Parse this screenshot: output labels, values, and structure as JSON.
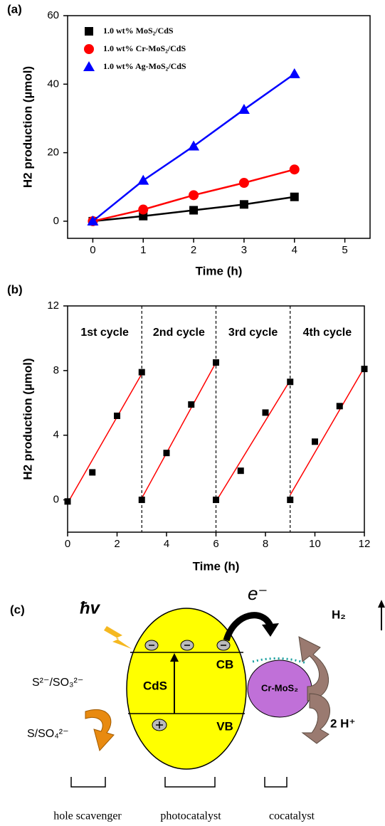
{
  "chart_data": [
    {
      "type": "line",
      "panel_label": "(a)",
      "x_label": "Time (h)",
      "y_label": "H2 production (µmol)",
      "x": [
        0,
        1,
        2,
        3,
        4
      ],
      "series": [
        {
          "name": "1.0 wt% MoS₂/CdS",
          "color": "#000000",
          "marker": "square",
          "values": [
            0,
            1.5,
            3.2,
            4.9,
            7.1
          ]
        },
        {
          "name": "1.0 wt% Cr-MoS₂/CdS",
          "color": "#ff0000",
          "marker": "circle",
          "values": [
            0,
            3.4,
            7.6,
            11.2,
            15.1
          ]
        },
        {
          "name": "1.0 wt% Ag-MoS₂/CdS",
          "color": "#0000ff",
          "marker": "triangle",
          "values": [
            0,
            11.9,
            21.9,
            32.6,
            43.0
          ]
        }
      ],
      "xlim": [
        -0.5,
        5.5
      ],
      "xticks": [
        0,
        1,
        2,
        3,
        4,
        5
      ],
      "ylim": [
        -5,
        60
      ],
      "yticks": [
        0,
        20,
        40,
        60
      ],
      "legend": "upper left"
    },
    {
      "type": "scatter",
      "panel_label": "(b)",
      "x_label": "Time (h)",
      "y_label": "H2 production (µmol)",
      "series": [
        {
          "color": "#000000",
          "marker": "square",
          "x": [
            0,
            1,
            2,
            3,
            3,
            4,
            5,
            6,
            6,
            7,
            8,
            9,
            9,
            10,
            11,
            12
          ],
          "values": [
            -0.1,
            1.7,
            5.2,
            7.9,
            0,
            2.9,
            5.9,
            8.5,
            0,
            1.8,
            5.4,
            7.3,
            0,
            3.6,
            5.8,
            8.1
          ]
        }
      ],
      "fits": [
        {
          "color": "#ff0000",
          "x": [
            0,
            3
          ],
          "values": [
            -0.2,
            7.8
          ]
        },
        {
          "color": "#ff0000",
          "x": [
            3,
            6
          ],
          "values": [
            0.1,
            8.5
          ]
        },
        {
          "color": "#ff0000",
          "x": [
            6,
            9
          ],
          "values": [
            -0.1,
            7.4
          ]
        },
        {
          "color": "#ff0000",
          "x": [
            9,
            12
          ],
          "values": [
            0.3,
            8.2
          ]
        }
      ],
      "cycle_boundaries": [
        3,
        6,
        9
      ],
      "cycle_labels": [
        "1st cycle",
        "2nd cycle",
        "3rd cycle",
        "4th cycle"
      ],
      "xlim": [
        0,
        12
      ],
      "xticks": [
        0,
        2,
        4,
        6,
        8,
        10,
        12
      ],
      "ylim": [
        -2,
        12
      ],
      "yticks": [
        0,
        4,
        8,
        12
      ]
    }
  ],
  "diagram": {
    "panel_label": "(c)",
    "light": "ħv",
    "electron": "e⁻",
    "cb": "CB",
    "vb": "VB",
    "catalyst": "CdS",
    "cocatalyst": "Cr-MoS₂",
    "product": "H₂",
    "reactant": "2 H⁺",
    "scavenger": "S²⁻/SO₃²⁻",
    "oxidized": "S/SO₄²⁻",
    "captions": [
      "hole scavenger",
      "photocatalyst",
      "cocatalyst"
    ]
  }
}
